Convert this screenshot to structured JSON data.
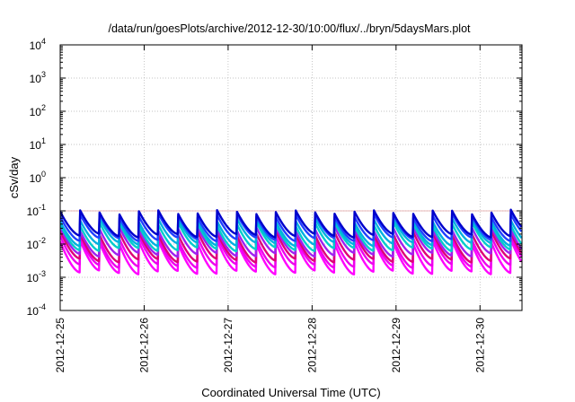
{
  "chart_data": {
    "type": "line",
    "title": "/data/run/goesPlots/archive/2012-12-30/10:00/flux/../bryn/5daysMars.plot",
    "xlabel": "Coordinated Universal Time (UTC)",
    "ylabel": "cSv/day",
    "yscale": "log",
    "ylim": [
      0.0001,
      10000
    ],
    "xlim": [
      "2012-12-25",
      "2012-12-30 12:00"
    ],
    "grid": true,
    "legend": "none",
    "y_ticks": [
      {
        "value": 0.0001,
        "base": "10",
        "exp": "-4"
      },
      {
        "value": 0.001,
        "base": "10",
        "exp": "-3"
      },
      {
        "value": 0.01,
        "base": "10",
        "exp": "-2"
      },
      {
        "value": 0.1,
        "base": "10",
        "exp": "-1"
      },
      {
        "value": 1,
        "base": "10",
        "exp": "0"
      },
      {
        "value": 10,
        "base": "10",
        "exp": "1"
      },
      {
        "value": 100,
        "base": "10",
        "exp": "2"
      },
      {
        "value": 1000,
        "base": "10",
        "exp": "3"
      },
      {
        "value": 10000,
        "base": "10",
        "exp": "4"
      }
    ],
    "x_ticks": [
      "2012-12-25",
      "2012-12-26",
      "2012-12-27",
      "2012-12-28",
      "2012-12-29",
      "2012-12-30"
    ],
    "reference_line": {
      "y": 0.1,
      "color": "#e0a0a0"
    },
    "sawtooth_period_hours": 5.6,
    "series": [
      {
        "color": "#ff00ff",
        "peak": 0.012,
        "trough": 0.0014
      },
      {
        "color": "#ee00ee",
        "peak": 0.016,
        "trough": 0.0022
      },
      {
        "color": "#dd0077",
        "peak": 0.022,
        "trough": 0.0032
      },
      {
        "color": "#a020f0",
        "peak": 0.03,
        "trough": 0.0048
      },
      {
        "color": "#00cccc",
        "peak": 0.042,
        "trough": 0.007
      },
      {
        "color": "#00b0e0",
        "peak": 0.055,
        "trough": 0.01
      },
      {
        "color": "#2040ff",
        "peak": 0.075,
        "trough": 0.014
      },
      {
        "color": "#0000cc",
        "peak": 0.095,
        "trough": 0.018
      }
    ]
  }
}
